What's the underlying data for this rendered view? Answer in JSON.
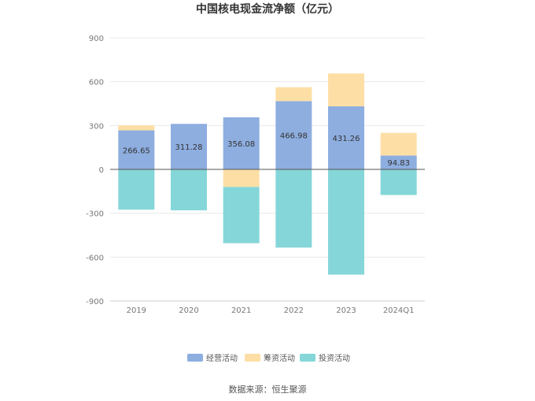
{
  "chart_data": {
    "type": "bar",
    "stacked": true,
    "title": "中国核电现金流净额（亿元）",
    "categories": [
      "2019",
      "2020",
      "2021",
      "2022",
      "2023",
      "2024Q1"
    ],
    "ylim": [
      -900,
      900
    ],
    "yticks": [
      900,
      600,
      300,
      0,
      -300,
      -600,
      -900
    ],
    "series": [
      {
        "name": "经营活动",
        "color": "#8eaee0",
        "values": [
          266.65,
          311.28,
          356.08,
          466.98,
          431.26,
          94.83
        ],
        "show_labels": true
      },
      {
        "name": "筹资活动",
        "color": "#fddfa6",
        "values": [
          35,
          0,
          -120,
          95,
          225,
          155
        ],
        "show_labels": false
      },
      {
        "name": "投资活动",
        "color": "#85d6d8",
        "values": [
          -275,
          -280,
          -385,
          -535,
          -720,
          -175
        ],
        "show_labels": false
      }
    ],
    "legend_position": "bottom-center"
  },
  "source_text": "数据来源：恒生聚源"
}
